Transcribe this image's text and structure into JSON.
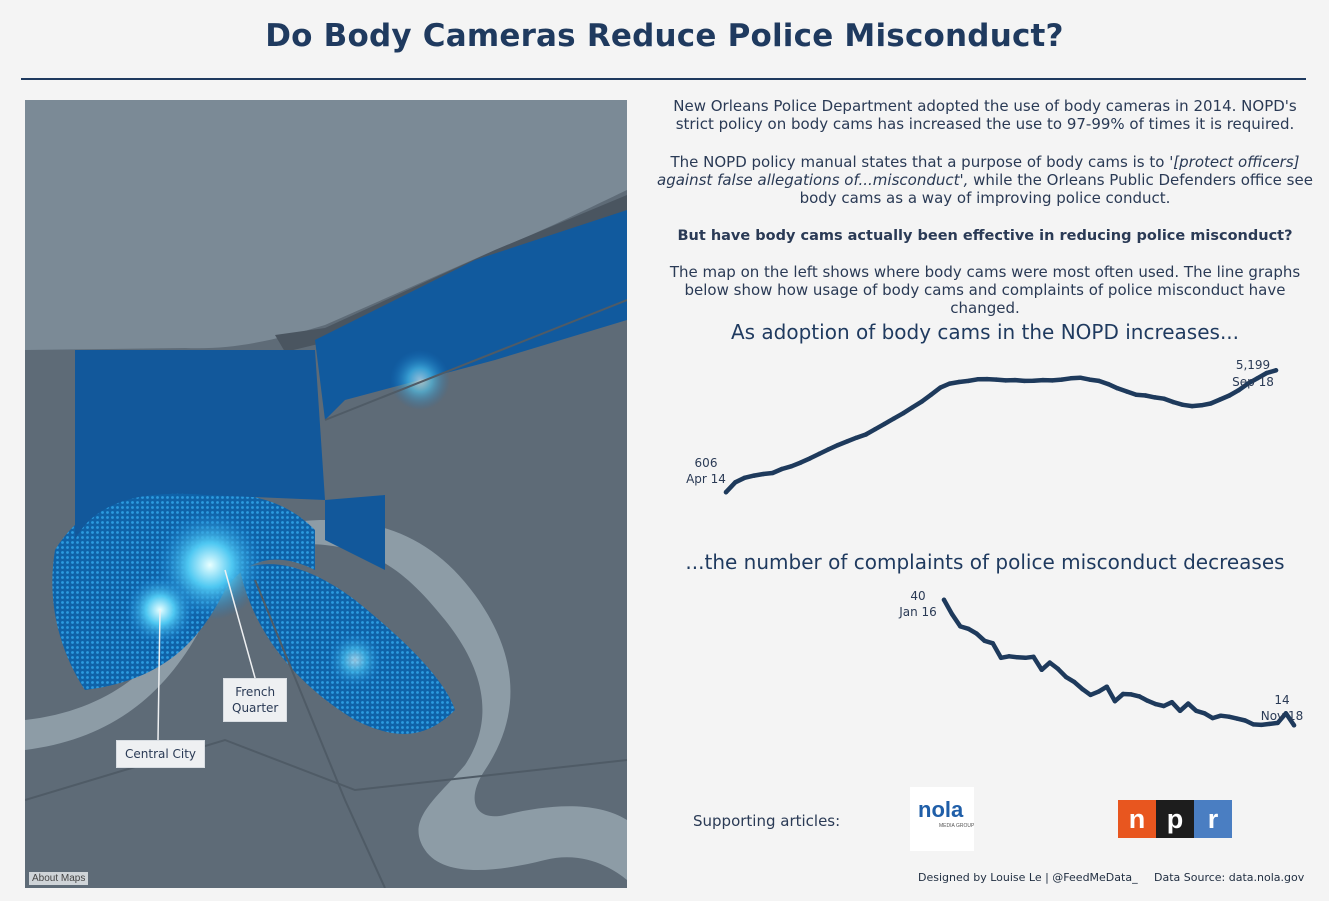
{
  "title": "Do Body Cameras Reduce Police Misconduct?",
  "map": {
    "callouts": {
      "french_quarter": "French\nQuarter",
      "central_city": "Central City"
    },
    "about_maps": "About Maps"
  },
  "intro": {
    "p1": "New Orleans Police Department adopted the use of body cameras in 2014. NOPD's strict policy on body cams has increased the use to 97-99% of times it is required.",
    "p2_before": "The NOPD policy manual states that a purpose of body cams is to ",
    "p2_quote": "'[protect officers] against false allegations of...misconduct',",
    "p2_after": " while the Orleans Public Defenders office see body cams as a way of improving police conduct.",
    "p3": "But have body cams actually been effective in reducing police misconduct?",
    "p4": "The map on the left shows where body cams were most often used. The line graphs below show how usage of body cams and complaints of police misconduct have changed."
  },
  "chart_data": [
    {
      "type": "line",
      "title": "As adoption of body cams in the NOPD increases...",
      "series": [
        {
          "values": [
            606,
            980,
            1150,
            1230,
            1290,
            1330,
            1480,
            1580,
            1720,
            1880,
            2050,
            2220,
            2380,
            2520,
            2660,
            2780,
            2980,
            3180,
            3380,
            3580,
            3800,
            4020,
            4280,
            4550,
            4700,
            4760,
            4800,
            4860,
            4870,
            4850,
            4820,
            4830,
            4800,
            4810,
            4830,
            4820,
            4850,
            4900,
            4920,
            4850,
            4800,
            4680,
            4520,
            4400,
            4280,
            4250,
            4180,
            4130,
            4000,
            3900,
            3850,
            3880,
            3950,
            4100,
            4250,
            4450,
            4700,
            4900,
            5100,
            5199
          ]
        }
      ],
      "start_label": {
        "value": "606",
        "date": "Apr 14"
      },
      "end_label": {
        "value": "5,199",
        "date": "Sep 18"
      },
      "ylim": [
        500,
        5400
      ],
      "color": "#1e3a5c"
    },
    {
      "type": "line",
      "title": "...the number of complaints of police misconduct decreases",
      "series": [
        {
          "values": [
            40,
            37,
            34.5,
            34,
            33,
            31.5,
            31,
            28,
            28.3,
            28.1,
            28,
            28.2,
            25.5,
            27,
            25.7,
            24,
            23,
            21.5,
            20.3,
            21,
            22,
            19,
            20.5,
            20.4,
            20,
            19.1,
            18.4,
            18,
            18.8,
            17,
            18.5,
            17,
            16.5,
            15.5,
            16,
            15.8,
            15.4,
            15,
            14.2,
            14.1,
            14.3,
            14.5,
            16.5,
            14
          ]
        }
      ],
      "start_label": {
        "value": "40",
        "date": "Jan 16"
      },
      "end_label": {
        "value": "14",
        "date": "Nov 18"
      },
      "ylim": [
        12,
        41
      ],
      "color": "#1e3a5c"
    }
  ],
  "support": {
    "label": "Supporting articles:",
    "nola_text": "nola",
    "nola_sub": "MEDIA GROUP",
    "npr_letters": [
      "n",
      "p",
      "r"
    ],
    "npr_colors": [
      "#e8561f",
      "#1d1d1d",
      "#4a7ec2"
    ]
  },
  "footer": {
    "credit": "Designed by Louise Le | @FeedMeData_",
    "source": "Data Source: data.nola.gov"
  }
}
